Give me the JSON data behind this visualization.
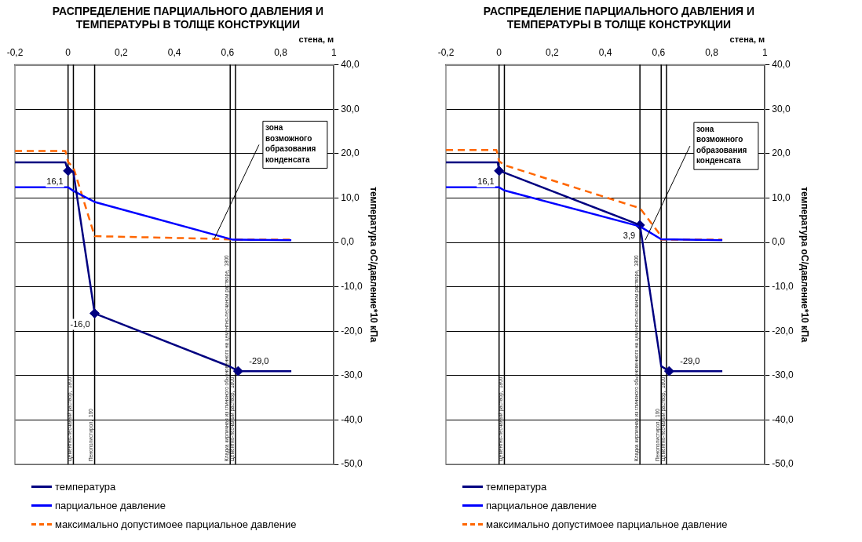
{
  "chart_data": [
    {
      "type": "line",
      "title": "РАСПРЕДЕЛЕНИЕ ПАРЦИАЛЬНОГО ДАВЛЕНИЯ И ТЕМПЕРАТУРЫ В ТОЛЩЕ КОНСТРУКЦИИ",
      "xlabel": "стена, м",
      "ylabel": "температура оС/давление*10 кПа",
      "xlim": [
        -0.2,
        1
      ],
      "xticks": [
        {
          "value": -0.2,
          "label": "-0,2"
        },
        {
          "value": 0,
          "label": "0"
        },
        {
          "value": 0.2,
          "label": "0,2"
        },
        {
          "value": 0.4,
          "label": "0,4"
        },
        {
          "value": 0.6,
          "label": "0,6"
        },
        {
          "value": 0.8,
          "label": "0,8"
        },
        {
          "value": 1,
          "label": "1"
        }
      ],
      "ylim": [
        -50,
        40
      ],
      "yticks": [
        {
          "value": -50,
          "label": "-50,0"
        },
        {
          "value": -40,
          "label": "-40,0"
        },
        {
          "value": -30,
          "label": "-30,0"
        },
        {
          "value": -20,
          "label": "-20,0"
        },
        {
          "value": -10,
          "label": "-10,0"
        },
        {
          "value": 0,
          "label": "0,0"
        },
        {
          "value": 10,
          "label": "10,0"
        },
        {
          "value": 20,
          "label": "20,0"
        },
        {
          "value": 30,
          "label": "30,0"
        },
        {
          "value": 40,
          "label": "40,0"
        }
      ],
      "grid": "y",
      "legend": "bottom",
      "marker": "none",
      "series": [
        {
          "name": "температура",
          "color": "#000080",
          "x": [
            -0.2,
            -0.01,
            0,
            0.02,
            0.1,
            0.61,
            0.64,
            0.84
          ],
          "values": [
            18.0,
            18.0,
            16.1,
            15.8,
            -16.0,
            -28.0,
            -29.0,
            -29.0
          ]
        },
        {
          "name": "парциальное давление",
          "color": "#0000ff",
          "x": [
            -0.2,
            0,
            0.02,
            0.1,
            0.62,
            0.84
          ],
          "values": [
            12.4,
            12.4,
            11.6,
            9.1,
            0.6,
            0.5
          ]
        },
        {
          "name": "максимально допустимоее парциальное давление",
          "color": "#ff6600",
          "line_style": "dashed",
          "x": [
            -0.2,
            -0.01,
            0,
            0.02,
            0.1,
            0.55,
            0.63,
            0.84
          ],
          "values": [
            20.6,
            20.6,
            18.1,
            16.9,
            1.4,
            0.8,
            0.6,
            0.6
          ]
        },
        {
          "type": "scatter",
          "marker": "diamond",
          "color": "#000080",
          "x": [
            0,
            0.1,
            0.64
          ],
          "values": [
            16.1,
            -16.0,
            -29.0
          ],
          "value_labels": [
            "16,1",
            "-16,0",
            "-29,0"
          ]
        }
      ],
      "ref_lines": [
        {
          "axis": "x",
          "value": 0,
          "color": "#000000"
        },
        {
          "axis": "x",
          "value": 0.02,
          "color": "#000000",
          "label": "Цементно-песчаный раствор,  1800"
        },
        {
          "axis": "x",
          "value": 0.1,
          "color": "#000000",
          "label": "Пенополистирол,  100"
        },
        {
          "axis": "x",
          "value": 0.61,
          "color": "#000000",
          "label": "Кладка кирпичная из глиняного обыкновенного на цементно-песчаном растворе,  1800"
        },
        {
          "axis": "x",
          "value": 0.63,
          "color": "#000000",
          "label": "Цементно-песчаный раствор,  1800"
        }
      ],
      "annotations": [
        {
          "text": "зона возможного образования конденсата",
          "x": 0.55,
          "y": 0.8
        }
      ]
    },
    {
      "type": "line",
      "title": "РАСПРЕДЕЛЕНИЕ ПАРЦИАЛЬНОГО ДАВЛЕНИЯ И ТЕМПЕРАТУРЫ В ТОЛЩЕ КОНСТРУКЦИИ",
      "xlabel": "стена, м",
      "ylabel": "температура оС/давление*10 кПа",
      "xlim": [
        -0.2,
        1
      ],
      "xticks": [
        {
          "value": -0.2,
          "label": "-0,2"
        },
        {
          "value": 0,
          "label": "0"
        },
        {
          "value": 0.2,
          "label": "0,2"
        },
        {
          "value": 0.4,
          "label": "0,4"
        },
        {
          "value": 0.6,
          "label": "0,6"
        },
        {
          "value": 0.8,
          "label": "0,8"
        },
        {
          "value": 1,
          "label": "1"
        }
      ],
      "ylim": [
        -50,
        40
      ],
      "yticks": [
        {
          "value": -50,
          "label": "-50,0"
        },
        {
          "value": -40,
          "label": "-40,0"
        },
        {
          "value": -30,
          "label": "-30,0"
        },
        {
          "value": -20,
          "label": "-20,0"
        },
        {
          "value": -10,
          "label": "-10,0"
        },
        {
          "value": 0,
          "label": "0,0"
        },
        {
          "value": 10,
          "label": "10,0"
        },
        {
          "value": 20,
          "label": "20,0"
        },
        {
          "value": 30,
          "label": "30,0"
        },
        {
          "value": 40,
          "label": "40,0"
        }
      ],
      "grid": "y",
      "legend": "bottom",
      "marker": "none",
      "series": [
        {
          "name": "температура",
          "color": "#000080",
          "x": [
            -0.2,
            -0.005,
            0,
            0.02,
            0.53,
            0.61,
            0.64,
            0.84
          ],
          "values": [
            18.0,
            18.0,
            16.1,
            15.7,
            3.9,
            -27.9,
            -29.0,
            -29.0
          ]
        },
        {
          "name": "парциальное давление",
          "color": "#0000ff",
          "x": [
            -0.2,
            0,
            0.02,
            0.53,
            0.61,
            0.84
          ],
          "values": [
            12.4,
            12.4,
            11.7,
            3.6,
            0.7,
            0.5
          ]
        },
        {
          "name": "максимально допустимоее парциальное давление",
          "color": "#ff6600",
          "line_style": "dashed",
          "x": [
            -0.2,
            -0.01,
            0,
            0.02,
            0.53,
            0.6,
            0.61,
            0.84
          ],
          "values": [
            20.8,
            20.8,
            18.3,
            17.4,
            7.7,
            2.2,
            0.6,
            0.6
          ]
        },
        {
          "type": "scatter",
          "marker": "diamond",
          "color": "#000080",
          "x": [
            0,
            0.53,
            0.64
          ],
          "values": [
            16.1,
            3.9,
            -29.0
          ],
          "value_labels": [
            "16,1",
            "3,9",
            "-29,0"
          ]
        }
      ],
      "ref_lines": [
        {
          "axis": "x",
          "value": 0,
          "color": "#000000"
        },
        {
          "axis": "x",
          "value": 0.02,
          "color": "#000000",
          "label": "Цементно-песчаный раствор,  1800"
        },
        {
          "axis": "x",
          "value": 0.53,
          "color": "#000000",
          "label": "Кладка кирпичная из глиняного обыкновенного на цементно-песчаном растворе,  1800"
        },
        {
          "axis": "x",
          "value": 0.61,
          "color": "#000000",
          "label": "Пенополистирол,  100"
        },
        {
          "axis": "x",
          "value": 0.63,
          "color": "#000000",
          "label": "Цементно-песчаный раствор,  1800"
        }
      ],
      "annotations": [
        {
          "text": "зона возможного образования конденсата",
          "x": 0.55,
          "y": 0.5
        }
      ]
    }
  ]
}
